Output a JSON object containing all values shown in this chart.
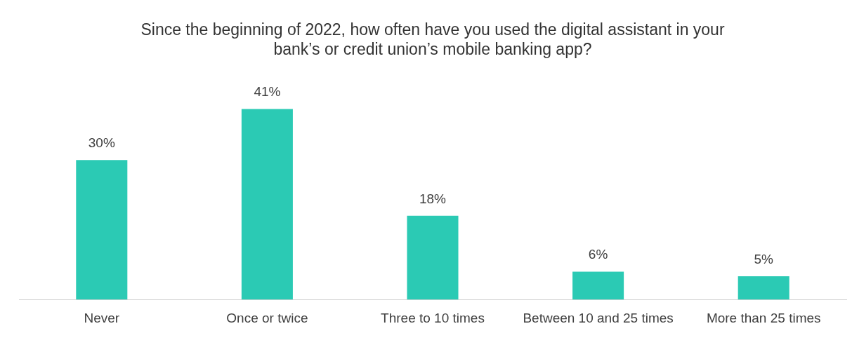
{
  "chart_data": {
    "type": "bar",
    "title": "Since the beginning of 2022, how often have you used the digital assistant in your bank’s or credit union’s mobile banking app?",
    "categories": [
      "Never",
      "Once or twice",
      "Three to 10 times",
      "Between 10 and 25 times",
      "More than 25 times"
    ],
    "values": [
      30,
      41,
      18,
      6,
      5
    ],
    "value_labels": [
      "30%",
      "41%",
      "18%",
      "6%",
      "5%"
    ],
    "color": "#2bcab4"
  }
}
